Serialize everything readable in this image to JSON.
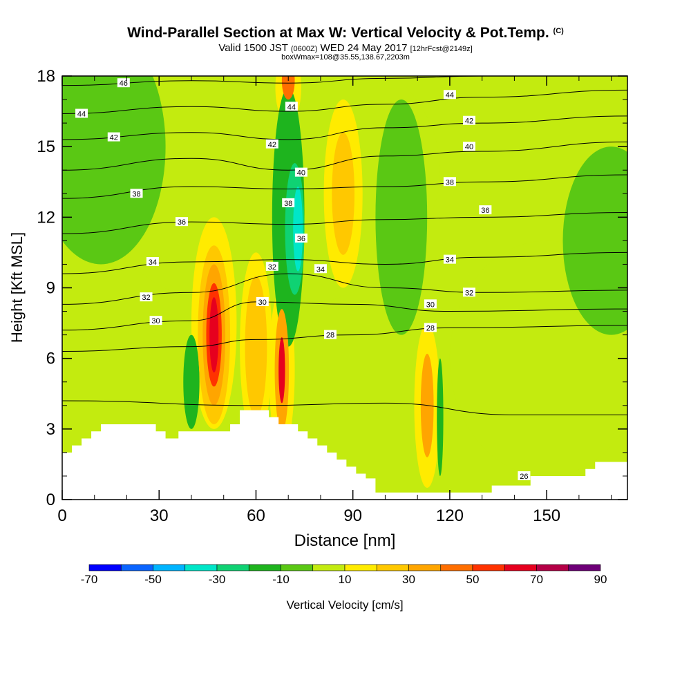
{
  "header": {
    "title": "Wind-Parallel Section at Max W: Vertical Velocity & Pot.Temp.",
    "title_tag": "(C)",
    "valid_prefix": "Valid 1500 JST",
    "valid_utc": "(0600Z)",
    "valid_date": "WED 24 May 2017",
    "forecast": "[12hrFcst@2149z]",
    "box_info": "boxWmax=108@35.55,138.67,2203m"
  },
  "chart_data": {
    "type": "heatmap",
    "title": "Wind-Parallel Section at Max W: Vertical Velocity & Pot.Temp.",
    "xlabel": "Distance [nm]",
    "ylabel": "Height [Kft MSL]",
    "xlim": [
      0,
      175
    ],
    "ylim": [
      0,
      18
    ],
    "x_ticks": [
      0,
      30,
      60,
      90,
      120,
      150
    ],
    "y_ticks": [
      0,
      3,
      6,
      9,
      12,
      15,
      18
    ],
    "colorbar": {
      "label": "Vertical Velocity [cm/s]",
      "tick_labels": [
        "-70",
        "-50",
        "-30",
        "-10",
        "10",
        "30",
        "50",
        "70",
        "90"
      ],
      "bins": [
        {
          "from": -70,
          "to": -60,
          "color": "#0000ff"
        },
        {
          "from": -60,
          "to": -50,
          "color": "#0a64ff"
        },
        {
          "from": -50,
          "to": -40,
          "color": "#00b4ff"
        },
        {
          "from": -40,
          "to": -30,
          "color": "#00e6c8"
        },
        {
          "from": -30,
          "to": -20,
          "color": "#0fd273"
        },
        {
          "from": -20,
          "to": -10,
          "color": "#1eb41e"
        },
        {
          "from": -10,
          "to": 0,
          "color": "#5ac814"
        },
        {
          "from": 0,
          "to": 10,
          "color": "#c3eb0f"
        },
        {
          "from": 10,
          "to": 20,
          "color": "#ffeb00"
        },
        {
          "from": 20,
          "to": 30,
          "color": "#ffc800"
        },
        {
          "from": 30,
          "to": 40,
          "color": "#ffa500"
        },
        {
          "from": 40,
          "to": 50,
          "color": "#ff6e00"
        },
        {
          "from": 50,
          "to": 60,
          "color": "#ff3200"
        },
        {
          "from": 60,
          "to": 70,
          "color": "#e6001e"
        },
        {
          "from": 70,
          "to": 80,
          "color": "#b40046"
        },
        {
          "from": 80,
          "to": 90,
          "color": "#6e0078"
        }
      ]
    },
    "theta_contours": [
      {
        "label": "26",
        "heights": [
          [
            0,
            4.2
          ],
          [
            60,
            4.0
          ],
          [
            100,
            4.1
          ],
          [
            140,
            3.6
          ],
          [
            175,
            3.6
          ]
        ],
        "label_at": [
          143,
          1.0
        ]
      },
      {
        "label": "28",
        "heights": [
          [
            0,
            6.3
          ],
          [
            40,
            6.5
          ],
          [
            60,
            6.8
          ],
          [
            90,
            7.0
          ],
          [
            120,
            7.3
          ],
          [
            175,
            7.4
          ]
        ],
        "label_at": [
          83,
          7.0
        ]
      },
      {
        "label": "30",
        "heights": [
          [
            0,
            7.2
          ],
          [
            40,
            7.6
          ],
          [
            60,
            8.4
          ],
          [
            90,
            8.3
          ],
          [
            120,
            8.0
          ],
          [
            175,
            8.1
          ]
        ],
        "label_at": [
          62,
          8.4
        ]
      },
      {
        "label": "32",
        "heights": [
          [
            0,
            8.3
          ],
          [
            40,
            8.8
          ],
          [
            70,
            9.6
          ],
          [
            100,
            9.0
          ],
          [
            130,
            8.8
          ],
          [
            175,
            8.9
          ]
        ],
        "label_at": [
          26,
          8.6
        ]
      },
      {
        "label": "34",
        "heights": [
          [
            0,
            9.6
          ],
          [
            40,
            10.1
          ],
          [
            70,
            10.2
          ],
          [
            100,
            10.0
          ],
          [
            130,
            10.3
          ],
          [
            175,
            10.5
          ]
        ],
        "label_at": [
          80,
          9.8
        ]
      },
      {
        "label": "36",
        "heights": [
          [
            0,
            11.3
          ],
          [
            40,
            11.8
          ],
          [
            70,
            11.7
          ],
          [
            100,
            11.9
          ],
          [
            130,
            12.0
          ],
          [
            175,
            12.2
          ]
        ],
        "label_at": [
          131,
          12.3
        ]
      },
      {
        "label": "38",
        "heights": [
          [
            0,
            12.8
          ],
          [
            40,
            13.3
          ],
          [
            70,
            13.2
          ],
          [
            100,
            13.3
          ],
          [
            130,
            13.5
          ],
          [
            175,
            13.8
          ]
        ],
        "label_at": [
          23,
          13.0
        ]
      },
      {
        "label": "40",
        "heights": [
          [
            0,
            14.0
          ],
          [
            40,
            14.5
          ],
          [
            70,
            14.0
          ],
          [
            100,
            14.6
          ],
          [
            130,
            14.8
          ],
          [
            175,
            15.2
          ]
        ],
        "label_at": [
          126,
          15.0
        ]
      },
      {
        "label": "42",
        "heights": [
          [
            0,
            15.3
          ],
          [
            40,
            15.6
          ],
          [
            70,
            15.3
          ],
          [
            100,
            15.8
          ],
          [
            130,
            16.0
          ],
          [
            175,
            16.3
          ]
        ],
        "label_at": [
          16,
          15.4
        ]
      },
      {
        "label": "44",
        "heights": [
          [
            0,
            16.4
          ],
          [
            40,
            16.7
          ],
          [
            70,
            16.5
          ],
          [
            100,
            16.8
          ],
          [
            130,
            17.1
          ],
          [
            175,
            17.4
          ]
        ],
        "label_at": [
          6,
          16.4
        ]
      },
      {
        "label": "46",
        "heights": [
          [
            0,
            17.6
          ],
          [
            40,
            17.8
          ],
          [
            70,
            17.7
          ],
          [
            100,
            17.9
          ],
          [
            130,
            18.0
          ],
          [
            175,
            18.0
          ]
        ],
        "label_at": [
          19,
          17.7
        ]
      }
    ],
    "extra_contour_labels": [
      {
        "label": "44",
        "x": 71,
        "y": 16.7
      },
      {
        "label": "42",
        "x": 65,
        "y": 15.1
      },
      {
        "label": "40",
        "x": 74,
        "y": 13.9
      },
      {
        "label": "38",
        "x": 70,
        "y": 12.6
      },
      {
        "label": "36",
        "x": 37,
        "y": 11.8
      },
      {
        "label": "36",
        "x": 74,
        "y": 11.1
      },
      {
        "label": "34",
        "x": 28,
        "y": 10.1
      },
      {
        "label": "32",
        "x": 65,
        "y": 9.9
      },
      {
        "label": "30",
        "x": 29,
        "y": 7.6
      },
      {
        "label": "30",
        "x": 114,
        "y": 8.3
      },
      {
        "label": "28",
        "x": 114,
        "y": 7.3
      },
      {
        "label": "34",
        "x": 120,
        "y": 10.2
      },
      {
        "label": "32",
        "x": 126,
        "y": 8.8
      },
      {
        "label": "38",
        "x": 120,
        "y": 13.5
      },
      {
        "label": "42",
        "x": 126,
        "y": 16.1
      },
      {
        "label": "44",
        "x": 120,
        "y": 17.2
      }
    ],
    "terrain": [
      [
        0,
        2.0
      ],
      [
        3,
        2.0
      ],
      [
        3,
        2.3
      ],
      [
        6,
        2.3
      ],
      [
        6,
        2.6
      ],
      [
        9,
        2.6
      ],
      [
        9,
        2.9
      ],
      [
        12,
        2.9
      ],
      [
        12,
        3.2
      ],
      [
        29,
        3.2
      ],
      [
        29,
        2.9
      ],
      [
        32,
        2.9
      ],
      [
        32,
        2.6
      ],
      [
        36,
        2.6
      ],
      [
        36,
        2.9
      ],
      [
        52,
        2.9
      ],
      [
        52,
        3.2
      ],
      [
        55,
        3.2
      ],
      [
        55,
        3.8
      ],
      [
        64,
        3.8
      ],
      [
        64,
        3.5
      ],
      [
        67,
        3.5
      ],
      [
        67,
        3.2
      ],
      [
        73,
        3.2
      ],
      [
        73,
        2.9
      ],
      [
        76,
        2.9
      ],
      [
        76,
        2.6
      ],
      [
        79,
        2.6
      ],
      [
        79,
        2.3
      ],
      [
        82,
        2.3
      ],
      [
        82,
        2.0
      ],
      [
        85,
        2.0
      ],
      [
        85,
        1.7
      ],
      [
        88,
        1.7
      ],
      [
        88,
        1.4
      ],
      [
        91,
        1.4
      ],
      [
        91,
        1.1
      ],
      [
        94,
        1.1
      ],
      [
        94,
        0.9
      ],
      [
        97,
        0.9
      ],
      [
        97,
        0.3
      ],
      [
        133,
        0.3
      ],
      [
        133,
        0.6
      ],
      [
        145,
        0.6
      ],
      [
        145,
        1.0
      ],
      [
        162,
        1.0
      ],
      [
        162,
        1.3
      ],
      [
        165,
        1.3
      ],
      [
        165,
        1.6
      ],
      [
        175,
        1.6
      ],
      [
        175,
        0
      ],
      [
        0,
        0
      ]
    ],
    "updraft_regions": [
      {
        "w": 5,
        "x": 62,
        "y": 14,
        "rx": 55,
        "ry": 6
      },
      {
        "w": 5,
        "x": 150,
        "y": 6,
        "rx": 30,
        "ry": 5
      },
      {
        "w": 15,
        "x": 47,
        "y": 7.5,
        "rx": 7,
        "ry": 4.5
      },
      {
        "w": 25,
        "x": 47,
        "y": 7.0,
        "rx": 5,
        "ry": 3.8
      },
      {
        "w": 35,
        "x": 47,
        "y": 7.0,
        "rx": 3.5,
        "ry": 3.0
      },
      {
        "w": 55,
        "x": 47,
        "y": 7.0,
        "rx": 2.4,
        "ry": 2.2
      },
      {
        "w": 65,
        "x": 47,
        "y": 7.0,
        "rx": 1.4,
        "ry": 1.6
      },
      {
        "w": 15,
        "x": 60,
        "y": 6.5,
        "rx": 5,
        "ry": 4
      },
      {
        "w": 25,
        "x": 60,
        "y": 6.5,
        "rx": 3.4,
        "ry": 3
      },
      {
        "w": 15,
        "x": 68,
        "y": 5.5,
        "rx": 4,
        "ry": 3.5
      },
      {
        "w": 35,
        "x": 68,
        "y": 5.5,
        "rx": 2.2,
        "ry": 2.6
      },
      {
        "w": 65,
        "x": 68,
        "y": 5.5,
        "rx": 1,
        "ry": 1.4
      },
      {
        "w": 15,
        "x": 87,
        "y": 13,
        "rx": 6,
        "ry": 4
      },
      {
        "w": 25,
        "x": 87,
        "y": 13,
        "rx": 3.5,
        "ry": 2.6
      },
      {
        "w": 15,
        "x": 113,
        "y": 4,
        "rx": 4,
        "ry": 3.5
      },
      {
        "w": 35,
        "x": 113,
        "y": 4,
        "rx": 2,
        "ry": 2.2
      },
      {
        "w": 15,
        "x": 70,
        "y": 17.5,
        "rx": 4,
        "ry": 1.5
      },
      {
        "w": 45,
        "x": 70,
        "y": 17.8,
        "rx": 2,
        "ry": 0.8
      }
    ],
    "downdraft_regions": [
      {
        "w": -5,
        "x": 12,
        "y": 15,
        "rx": 20,
        "ry": 5
      },
      {
        "w": -5,
        "x": 105,
        "y": 12,
        "rx": 8,
        "ry": 5
      },
      {
        "w": -5,
        "x": 170,
        "y": 11,
        "rx": 15,
        "ry": 4
      },
      {
        "w": -15,
        "x": 70,
        "y": 12,
        "rx": 5,
        "ry": 5.5
      },
      {
        "w": -25,
        "x": 72,
        "y": 11.5,
        "rx": 3,
        "ry": 2.8
      },
      {
        "w": -35,
        "x": 73,
        "y": 11.5,
        "rx": 1.5,
        "ry": 1.8
      },
      {
        "w": -15,
        "x": 40,
        "y": 5,
        "rx": 2.5,
        "ry": 2
      },
      {
        "w": -15,
        "x": 117,
        "y": 3.5,
        "rx": 1,
        "ry": 2.5
      }
    ]
  }
}
